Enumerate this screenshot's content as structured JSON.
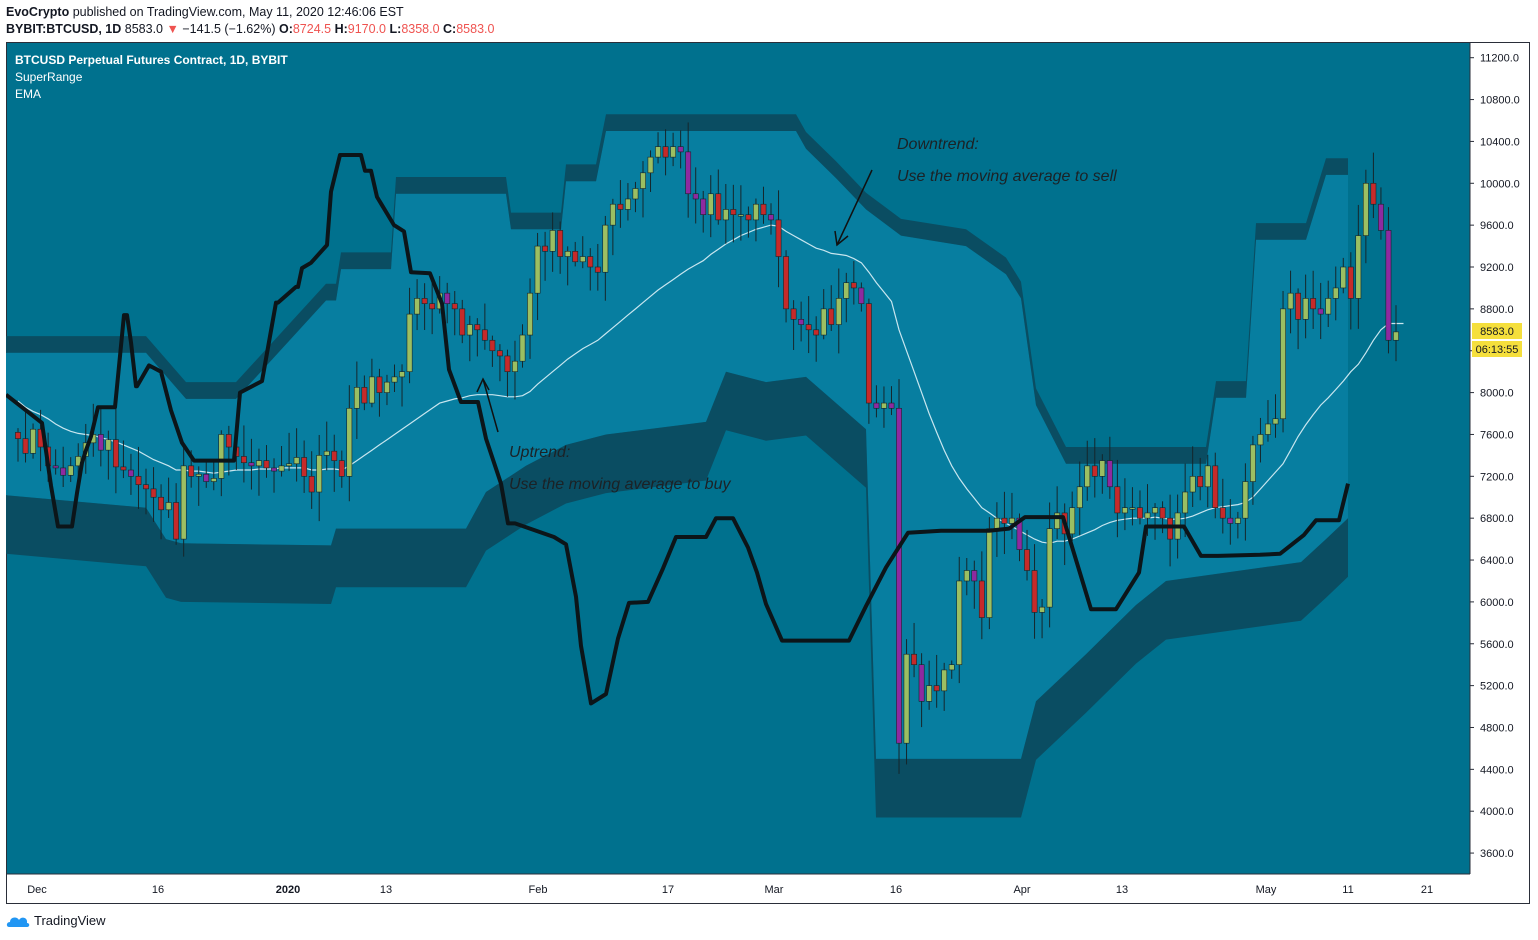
{
  "header": {
    "author": "EvoCrypto",
    "published_text": "published on TradingView.com, May 11, 2020 12:46:06 EST",
    "symbol": "BYBIT:BTCUSD, 1D",
    "last_price": "8583.0",
    "change_arrow": "▼",
    "change": "−141.5 (−1.62%)",
    "o_label": "O:",
    "o_value": "8724.5",
    "h_label": "H:",
    "h_value": "9170.0",
    "l_label": "L:",
    "l_value": "8358.0",
    "c_label": "C:",
    "c_value": "8583.0"
  },
  "legend": {
    "title": "BTCUSD Perpetual Futures Contract, 1D, BYBIT",
    "indicator1": "SuperRange",
    "indicator2": "EMA"
  },
  "annotations": {
    "downtrend_title": "Downtrend:",
    "downtrend_text": "Use the moving average to sell",
    "uptrend_title": "Uptrend:",
    "uptrend_text": "Use the moving average to buy"
  },
  "price_label": "8583.0",
  "countdown_label": "06:13:55",
  "footer": {
    "brand": "TradingView"
  },
  "colors": {
    "background": "#00718e",
    "band": "#077ea0",
    "band_edge": "#0a4d62",
    "supertrend": "#0c1519",
    "ema": "#c8e6ef",
    "candle_up": "#9bbf62",
    "candle_down": "#c62a2a",
    "candle_purple": "#8e2aa0",
    "price_tag": "#f5df3c"
  },
  "chart_data": {
    "type": "candlestick",
    "title": "BTCUSD Perpetual Futures Contract, 1D, BYBIT",
    "y_ticks": [
      "11200.0",
      "10800.0",
      "10400.0",
      "10000.0",
      "9600.0",
      "9200.0",
      "8800.0",
      "8400.0",
      "8000.0",
      "7600.0",
      "7200.0",
      "6800.0",
      "6400.0",
      "6000.0",
      "5600.0",
      "5200.0",
      "4800.0",
      "4400.0",
      "4000.0",
      "3600.0"
    ],
    "x_ticks": [
      "Dec",
      "16",
      "2020",
      "13",
      "Feb",
      "17",
      "Mar",
      "16",
      "Apr",
      "13",
      "May",
      "11",
      "21"
    ],
    "ylim": [
      3400,
      11350
    ],
    "closes": [
      7560,
      7420,
      7650,
      7480,
      7300,
      7280,
      7210,
      7300,
      7390,
      7520,
      7600,
      7450,
      7550,
      7290,
      7260,
      7200,
      7120,
      7080,
      7000,
      6880,
      6950,
      6600,
      7300,
      7200,
      7220,
      7150,
      7180,
      7600,
      7480,
      7390,
      7330,
      7300,
      7350,
      7280,
      7250,
      7300,
      7320,
      7380,
      7200,
      7050,
      7400,
      7440,
      7350,
      7200,
      7850,
      8050,
      7900,
      8150,
      8000,
      8100,
      8150,
      8200,
      8750,
      8900,
      8850,
      8800,
      8950,
      8850,
      8800,
      8550,
      8650,
      8600,
      8500,
      8400,
      8350,
      8200,
      8300,
      8550,
      8950,
      9400,
      9350,
      9550,
      9300,
      9350,
      9250,
      9300,
      9200,
      9150,
      9600,
      9800,
      9750,
      9850,
      9950,
      10100,
      10250,
      10350,
      10250,
      10350,
      10300,
      9900,
      9850,
      9700,
      9900,
      9650,
      9750,
      9700,
      9700,
      9650,
      9800,
      9700,
      9650,
      9300,
      8800,
      8700,
      8650,
      8600,
      8550,
      8800,
      8650,
      8900,
      9050,
      9000,
      8850,
      7900,
      7850,
      7900,
      7850,
      4650,
      5500,
      5400,
      5050,
      5200,
      5150,
      5350,
      5400,
      6200,
      6300,
      6200,
      5850,
      6700,
      6800,
      6750,
      6800,
      6500,
      6300,
      5900,
      5950,
      6700,
      6850,
      6650,
      6900,
      7100,
      7300,
      7200,
      7350,
      7100,
      6850,
      6900,
      6900,
      6800,
      6850,
      6900,
      6800,
      6600,
      6850,
      7050,
      7200,
      7100,
      7300,
      6900,
      6800,
      6750,
      6800,
      7150,
      7500,
      7600,
      7700,
      7750,
      8800,
      8950,
      8700,
      8900,
      8800,
      8750,
      8900,
      9000,
      9200,
      8900,
      9500,
      10000,
      9800,
      9550,
      8500,
      8580
    ],
    "ema_points": [
      7920,
      7860,
      7820,
      7790,
      7750,
      7700,
      7660,
      7630,
      7610,
      7600,
      7590,
      7570,
      7550,
      7530,
      7500,
      7470,
      7440,
      7400,
      7360,
      7330,
      7300,
      7260,
      7260,
      7250,
      7250,
      7240,
      7230,
      7240,
      7250,
      7260,
      7260,
      7260,
      7270,
      7270,
      7270,
      7280,
      7280,
      7280,
      7280,
      7260,
      7260,
      7270,
      7270,
      7260,
      7300,
      7350,
      7400,
      7450,
      7500,
      7550,
      7600,
      7650,
      7700,
      7750,
      7800,
      7850,
      7900,
      7920,
      7940,
      7950,
      7970,
      7980,
      7980,
      7980,
      7970,
      7960,
      7960,
      7970,
      8010,
      8080,
      8140,
      8200,
      8260,
      8320,
      8370,
      8420,
      8460,
      8500,
      8560,
      8620,
      8680,
      8740,
      8800,
      8860,
      8920,
      8980,
      9030,
      9080,
      9130,
      9180,
      9220,
      9260,
      9320,
      9370,
      9420,
      9460,
      9500,
      9530,
      9560,
      9580,
      9600,
      9590,
      9540,
      9500,
      9460,
      9420,
      9380,
      9360,
      9330,
      9320,
      9310,
      9280,
      9240,
      9150,
      9050,
      8960,
      8870,
      8600,
      8400,
      8200,
      8000,
      7800,
      7620,
      7450,
      7300,
      7180,
      7080,
      6990,
      6900,
      6850,
      6800,
      6760,
      6720,
      6680,
      6640,
      6600,
      6570,
      6560,
      6580,
      6580,
      6600,
      6630,
      6660,
      6690,
      6730,
      6760,
      6780,
      6790,
      6800,
      6800,
      6800,
      6810,
      6800,
      6790,
      6790,
      6800,
      6820,
      6850,
      6880,
      6900,
      6910,
      6920,
      6930,
      6950,
      7000,
      7080,
      7160,
      7240,
      7320,
      7450,
      7580,
      7690,
      7790,
      7880,
      7950,
      8030,
      8110,
      8200,
      8270,
      8380,
      8500,
      8600,
      8660,
      8660,
      8660
    ]
  }
}
